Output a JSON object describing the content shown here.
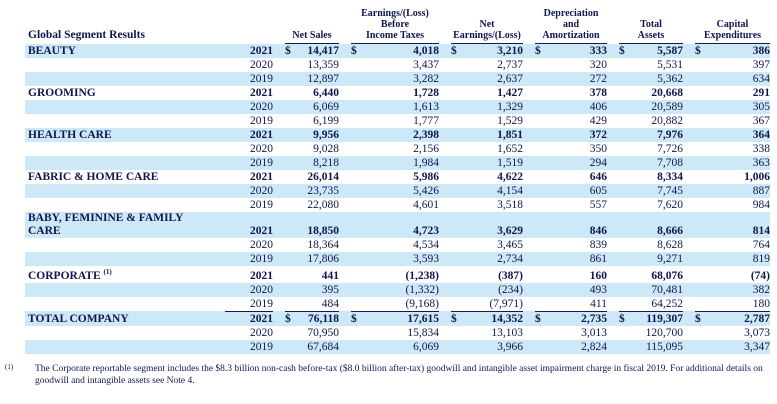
{
  "title": "Global Segment Results",
  "columns": [
    {
      "id": "net-sales",
      "lines": [
        "Net Sales"
      ]
    },
    {
      "id": "earnings-before-taxes",
      "lines": [
        "Earnings/(Loss)",
        "Before",
        "Income Taxes"
      ]
    },
    {
      "id": "net-earnings",
      "lines": [
        "Net Earnings/(Loss)"
      ]
    },
    {
      "id": "depreciation-amortization",
      "lines": [
        "Depreciation",
        "and",
        "Amortization"
      ]
    },
    {
      "id": "total-assets",
      "lines": [
        "Total",
        "Assets"
      ]
    },
    {
      "id": "capital-expenditures",
      "lines": [
        "Capital",
        "Expenditures"
      ]
    }
  ],
  "segments": [
    {
      "name_lines": [
        "BEAUTY"
      ],
      "rows": [
        {
          "year": "2021",
          "bold": true,
          "dollar": true,
          "values": [
            "14,417",
            "4,018",
            "3,210",
            "333",
            "5,587",
            "386"
          ]
        },
        {
          "year": "2020",
          "values": [
            "13,359",
            "3,437",
            "2,737",
            "320",
            "5,531",
            "397"
          ]
        },
        {
          "year": "2019",
          "values": [
            "12,897",
            "3,282",
            "2,637",
            "272",
            "5,362",
            "634"
          ]
        }
      ]
    },
    {
      "name_lines": [
        "GROOMING"
      ],
      "rows": [
        {
          "year": "2021",
          "bold": true,
          "values": [
            "6,440",
            "1,728",
            "1,427",
            "378",
            "20,668",
            "291"
          ]
        },
        {
          "year": "2020",
          "values": [
            "6,069",
            "1,613",
            "1,329",
            "406",
            "20,589",
            "305"
          ]
        },
        {
          "year": "2019",
          "values": [
            "6,199",
            "1,777",
            "1,529",
            "429",
            "20,882",
            "367"
          ]
        }
      ]
    },
    {
      "name_lines": [
        "HEALTH CARE"
      ],
      "rows": [
        {
          "year": "2021",
          "bold": true,
          "values": [
            "9,956",
            "2,398",
            "1,851",
            "372",
            "7,976",
            "364"
          ]
        },
        {
          "year": "2020",
          "values": [
            "9,028",
            "2,156",
            "1,652",
            "350",
            "7,726",
            "338"
          ]
        },
        {
          "year": "2019",
          "values": [
            "8,218",
            "1,984",
            "1,519",
            "294",
            "7,708",
            "363"
          ]
        }
      ]
    },
    {
      "name_lines": [
        "FABRIC & HOME CARE"
      ],
      "rows": [
        {
          "year": "2021",
          "bold": true,
          "values": [
            "26,014",
            "5,986",
            "4,622",
            "646",
            "8,334",
            "1,006"
          ]
        },
        {
          "year": "2020",
          "values": [
            "23,735",
            "5,426",
            "4,154",
            "605",
            "7,745",
            "887"
          ]
        },
        {
          "year": "2019",
          "values": [
            "22,080",
            "4,601",
            "3,518",
            "557",
            "7,620",
            "984"
          ]
        }
      ]
    },
    {
      "name_lines": [
        "BABY, FEMININE & FAMILY",
        "CARE"
      ],
      "rows": [
        {
          "year": "2021",
          "bold": true,
          "values": [
            "18,850",
            "4,723",
            "3,629",
            "846",
            "8,666",
            "814"
          ]
        },
        {
          "year": "2020",
          "values": [
            "18,364",
            "4,534",
            "3,465",
            "839",
            "8,628",
            "764"
          ]
        },
        {
          "year": "2019",
          "values": [
            "17,806",
            "3,593",
            "2,734",
            "861",
            "9,271",
            "819"
          ]
        }
      ]
    },
    {
      "name_lines": [
        "CORPORATE"
      ],
      "sup": "(1)",
      "rows": [
        {
          "year": "2021",
          "bold": true,
          "values": [
            "441",
            "(1,238)",
            "(387)",
            "160",
            "68,076",
            "(74)"
          ]
        },
        {
          "year": "2020",
          "values": [
            "395",
            "(1,332)",
            "(234)",
            "493",
            "70,481",
            "382"
          ]
        },
        {
          "year": "2019",
          "values": [
            "484",
            "(9,168)",
            "(7,971)",
            "411",
            "64,252",
            "180"
          ]
        }
      ]
    },
    {
      "name_lines": [
        "TOTAL COMPANY"
      ],
      "rows": [
        {
          "year": "2021",
          "bold": true,
          "dollar": true,
          "rule": true,
          "values": [
            "76,118",
            "17,615",
            "14,352",
            "2,735",
            "119,307",
            "2,787"
          ]
        },
        {
          "year": "2020",
          "values": [
            "70,950",
            "15,834",
            "13,103",
            "3,013",
            "120,700",
            "3,073"
          ]
        },
        {
          "year": "2019",
          "values": [
            "67,684",
            "6,069",
            "3,966",
            "2,824",
            "115,095",
            "3,347"
          ]
        }
      ]
    }
  ],
  "footnote": {
    "marker": "(1)",
    "text": "The Corporate reportable segment includes the $8.3 billion non-cash before-tax ($8.0 billion after-tax) goodwill and intangible asset impairment charge in fiscal 2019. For additional details on goodwill and intangible assets see Note 4."
  },
  "colors": {
    "band_blue": "#cde8f7",
    "text_navy": "#10164f",
    "rule": "#18184a"
  }
}
